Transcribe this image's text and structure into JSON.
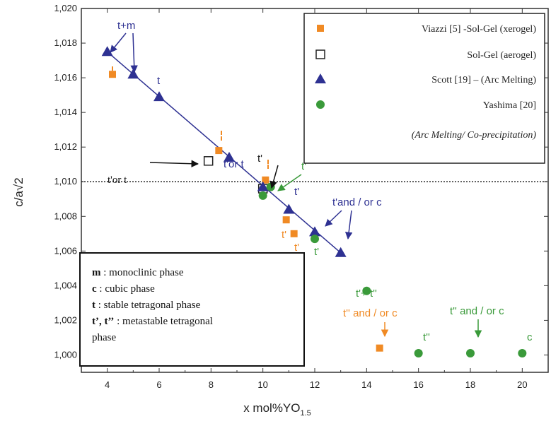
{
  "chart_data": {
    "type": "scatter",
    "xlabel": "x mol%YO",
    "xlabel_sub": "1.5",
    "ylabel": "c/a√2",
    "xlim": [
      3,
      21
    ],
    "ylim": [
      0.999,
      1.02
    ],
    "x_ticks": [
      4,
      6,
      8,
      10,
      12,
      14,
      16,
      18,
      20
    ],
    "y_ticks": [
      1.0,
      1.002,
      1.004,
      1.006,
      1.008,
      1.01,
      1.012,
      1.014,
      1.016,
      1.018,
      1.02
    ],
    "x_tick_labels": [
      "4",
      "6",
      "8",
      "10",
      "12",
      "14",
      "16",
      "18",
      "20"
    ],
    "y_tick_labels": [
      "1,000",
      "1,002",
      "1,004",
      "1,006",
      "1,008",
      "1,010",
      "1,012",
      "1,014",
      "1,016",
      "1,018",
      "1,020"
    ],
    "reference_line_y": 1.01,
    "legend_position": "top-right",
    "legend": [
      {
        "label": "Viazzi [5] -Sol-Gel (xerogel)",
        "marker": "square",
        "color": "#f08a24"
      },
      {
        "label": "Sol-Gel (aerogel)",
        "marker": "open-square",
        "color": "#222222"
      },
      {
        "label": "Scott [19] – (Arc Melting)",
        "marker": "triangle",
        "color": "#2e3192"
      },
      {
        "label": "Yashima [20]",
        "marker": "circle",
        "color": "#3a9a3a"
      },
      {
        "label": "(Arc Melting/ Co-precipitation)",
        "marker": "none",
        "color": "#222222"
      }
    ],
    "series": [
      {
        "name": "Viazzi [5] -Sol-Gel (xerogel)",
        "color": "#f08a24",
        "marker": "square",
        "x": [
          4.2,
          8.3,
          10.1,
          10.9,
          11.2,
          14.5
        ],
        "y": [
          1.0162,
          1.0118,
          1.0101,
          1.0078,
          1.007,
          1.0004
        ]
      },
      {
        "name": "Sol-Gel (aerogel)",
        "color": "#222222",
        "marker": "open-square",
        "x": [
          7.9,
          10.0
        ],
        "y": [
          1.0112,
          1.0096
        ]
      },
      {
        "name": "Scott [19] – (Arc Melting)",
        "color": "#2e3192",
        "marker": "triangle",
        "x": [
          4.0,
          5.0,
          6.0,
          8.7,
          10.0,
          11.0,
          12.0,
          13.0
        ],
        "y": [
          1.0175,
          1.0162,
          1.0149,
          1.0114,
          1.0097,
          1.0084,
          1.0071,
          1.0059
        ]
      },
      {
        "name": "Yashima [20]",
        "color": "#3a9a3a",
        "marker": "circle",
        "x": [
          10.0,
          10.3,
          12.0,
          14.0,
          16.0,
          18.0,
          20.0
        ],
        "y": [
          1.0092,
          1.0097,
          1.0067,
          1.0037,
          1.0001,
          1.0001,
          1.0001
        ]
      }
    ],
    "annotations": [
      {
        "text": "t+m",
        "color": "#2e3192"
      },
      {
        "text": "t",
        "color": "#2e3192"
      },
      {
        "text": "t'or t",
        "color": "#2e3192"
      },
      {
        "text": "t'or t",
        "color": "#222222"
      },
      {
        "text": "t'",
        "color": "#222222"
      },
      {
        "text": "t'",
        "color": "#3a9a3a"
      },
      {
        "text": "t'",
        "color": "#2e3192"
      },
      {
        "text": "t'and / or c",
        "color": "#2e3192"
      },
      {
        "text": "t'",
        "color": "#f08a24"
      },
      {
        "text": "t'",
        "color": "#f08a24"
      },
      {
        "text": "t'",
        "color": "#3a9a3a"
      },
      {
        "text": "t'+ t''",
        "color": "#3a9a3a"
      },
      {
        "text": "t'' and / or c",
        "color": "#f08a24"
      },
      {
        "text": "t'' and / or c",
        "color": "#3a9a3a"
      },
      {
        "text": "t''",
        "color": "#3a9a3a"
      },
      {
        "text": "c",
        "color": "#3a9a3a"
      }
    ]
  },
  "notes": [
    {
      "bold": "m",
      "text": " : monoclinic phase"
    },
    {
      "bold": "c",
      "text": " : cubic phase"
    },
    {
      "bold": "t",
      "text": " : stable tetragonal phase"
    },
    {
      "bold": "t’, t’’",
      "text": " : metastable tetragonal"
    },
    {
      "bold": "",
      "text": "phase"
    }
  ]
}
